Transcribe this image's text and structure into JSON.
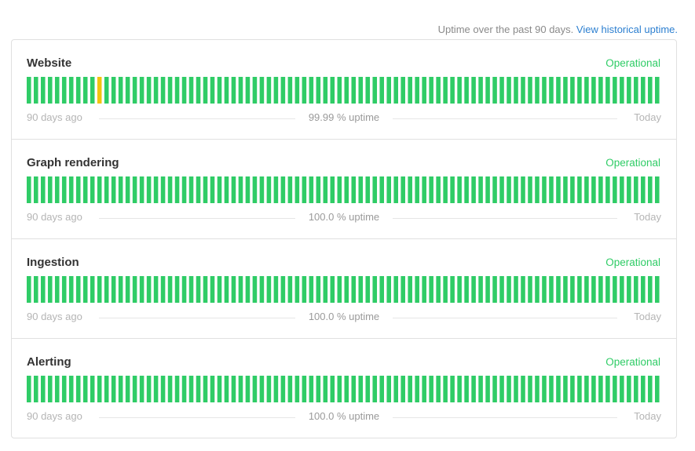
{
  "header": {
    "note": "Uptime over the past 90 days.",
    "link": "View historical uptime."
  },
  "colors": {
    "operational": "#2fcc66",
    "degraded": "#f1c40f"
  },
  "components": [
    {
      "name": "Website",
      "status": "Operational",
      "start_label": "90 days ago",
      "uptime_label": "99.99 % uptime",
      "end_label": "Today",
      "degraded_days": [
        10
      ]
    },
    {
      "name": "Graph rendering",
      "status": "Operational",
      "start_label": "90 days ago",
      "uptime_label": "100.0 % uptime",
      "end_label": "Today",
      "degraded_days": []
    },
    {
      "name": "Ingestion",
      "status": "Operational",
      "start_label": "90 days ago",
      "uptime_label": "100.0 % uptime",
      "end_label": "Today",
      "degraded_days": []
    },
    {
      "name": "Alerting",
      "status": "Operational",
      "start_label": "90 days ago",
      "uptime_label": "100.0 % uptime",
      "end_label": "Today",
      "degraded_days": []
    }
  ]
}
